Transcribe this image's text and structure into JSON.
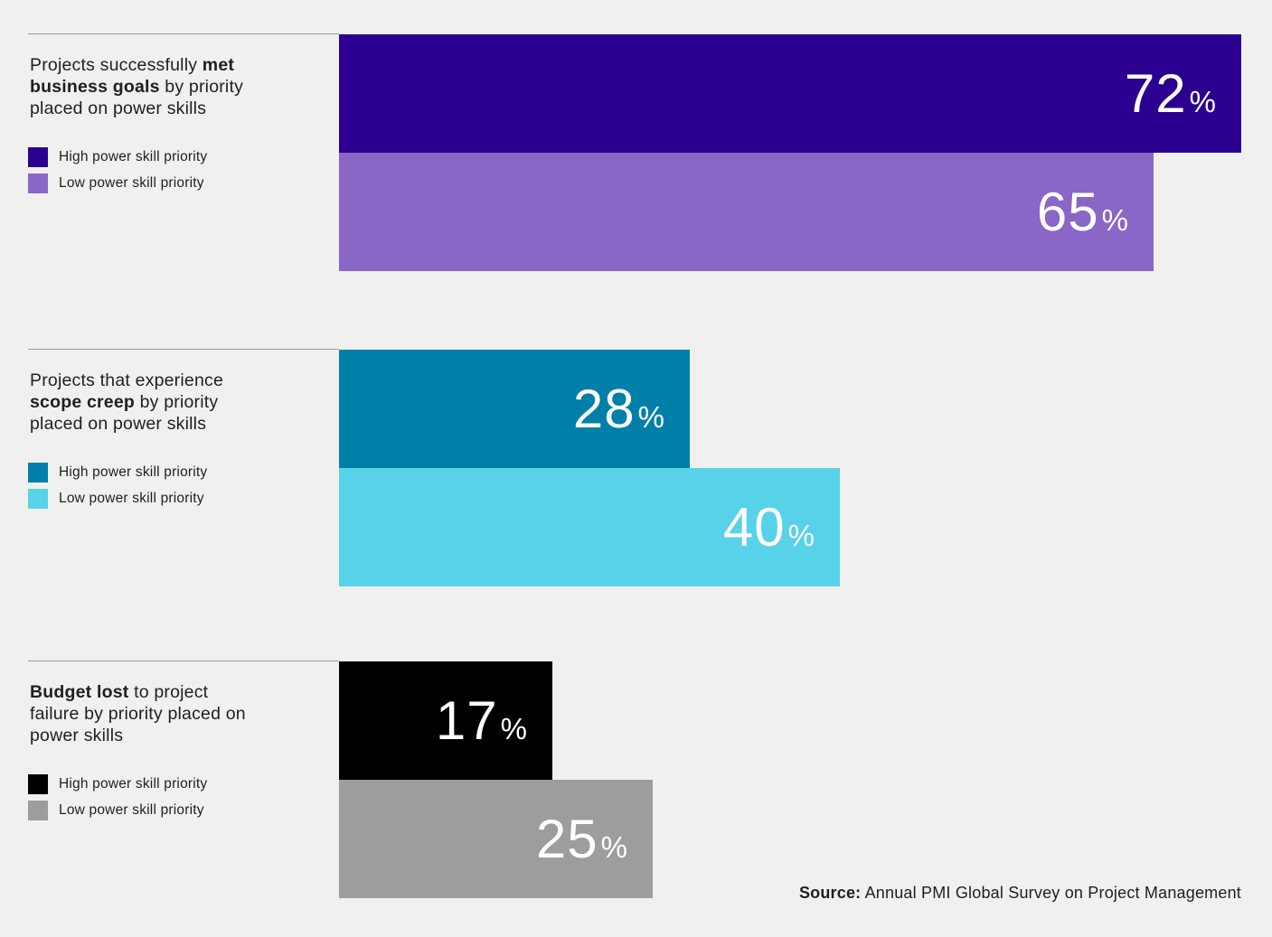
{
  "page": {
    "background_color": "#F0F0EF",
    "text_color": "#1F1F1F",
    "separator_color": "#9B9B9B"
  },
  "source": {
    "label": "Source:",
    "text": " Annual PMI Global Survey on Project Management"
  },
  "chart_data": {
    "type": "bar",
    "orientation": "horizontal",
    "unit": "%",
    "xlim": [
      0,
      72
    ],
    "grid": false,
    "legend_position": "left",
    "value_labels": "inside-right",
    "categories": [
      "Projects successfully met business goals by priority placed on power skills",
      "Projects that experience scope creep by priority placed on power skills",
      "Budget lost to project failure by priority placed on power skills"
    ],
    "series": [
      {
        "name": "High power skill priority",
        "values": [
          72,
          28,
          17
        ]
      },
      {
        "name": "Low power skill priority",
        "values": [
          65,
          40,
          25
        ]
      }
    ],
    "groups": [
      {
        "category": "Projects successfully met business goals by priority placed on power skills",
        "title_lines": [
          [
            {
              "t": "Projects successfully ",
              "b": false
            },
            {
              "t": "met",
              "b": true
            }
          ],
          [
            {
              "t": "business goals",
              "b": true
            },
            {
              "t": " by priority",
              "b": false
            }
          ],
          [
            {
              "t": "placed on power skills",
              "b": false
            }
          ]
        ],
        "legend": [
          {
            "label": "High power skill priority",
            "color": "#2B0090"
          },
          {
            "label": "Low power skill priority",
            "color": "#8A66C6"
          }
        ],
        "bars": [
          {
            "series": "High power skill priority",
            "value": 72,
            "color": "#2B0090"
          },
          {
            "series": "Low power skill priority",
            "value": 65,
            "color": "#8A66C6"
          }
        ]
      },
      {
        "category": "Projects that experience scope creep by priority placed on power skills",
        "title_lines": [
          [
            {
              "t": "Projects that experience",
              "b": false
            }
          ],
          [
            {
              "t": "scope creep",
              "b": true
            },
            {
              "t": " by priority",
              "b": false
            }
          ],
          [
            {
              "t": "placed on power skills",
              "b": false
            }
          ]
        ],
        "legend": [
          {
            "label": "High power skill priority",
            "color": "#0080A8"
          },
          {
            "label": "Low power skill priority",
            "color": "#57D2E9"
          }
        ],
        "bars": [
          {
            "series": "High power skill priority",
            "value": 28,
            "color": "#0080A8"
          },
          {
            "series": "Low power skill priority",
            "value": 40,
            "color": "#57D2E9"
          }
        ]
      },
      {
        "category": "Budget lost to project failure by priority placed on power skills",
        "title_lines": [
          [
            {
              "t": "Budget lost",
              "b": true
            },
            {
              "t": " to project",
              "b": false
            }
          ],
          [
            {
              "t": "failure by priority placed on",
              "b": false
            }
          ],
          [
            {
              "t": "power skills",
              "b": false
            }
          ]
        ],
        "legend": [
          {
            "label": "High power skill priority",
            "color": "#000000"
          },
          {
            "label": "Low power skill priority",
            "color": "#9D9D9D"
          }
        ],
        "bars": [
          {
            "series": "High power skill priority",
            "value": 17,
            "color": "#000000"
          },
          {
            "series": "Low power skill priority",
            "value": 25,
            "color": "#9D9D9D"
          }
        ]
      }
    ]
  }
}
